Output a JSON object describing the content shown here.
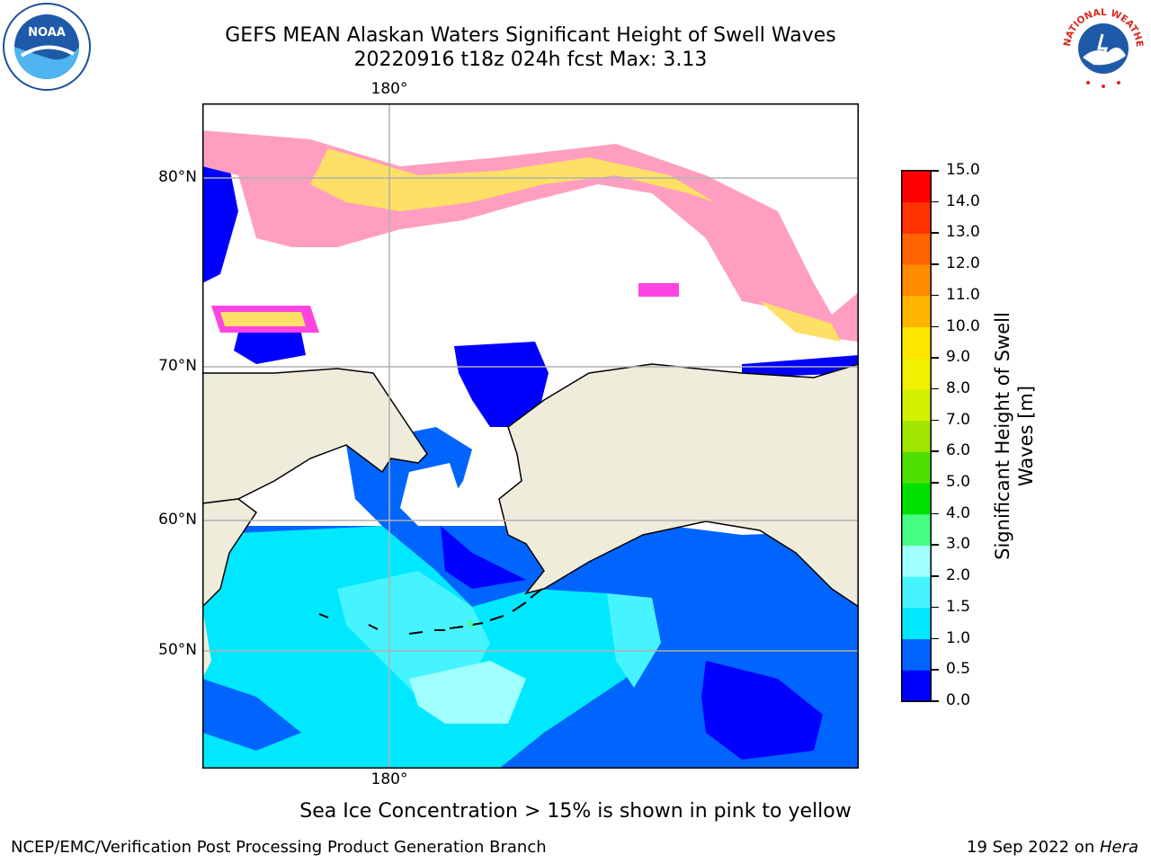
{
  "title": {
    "line1": "GEFS MEAN Alaskan Waters Significant Height of Swell Waves",
    "line2": "20220916 t18z 024h fcst   Max: 3.13"
  },
  "map": {
    "lon_label_top": "180°",
    "lon_label_bottom": "180°",
    "lat_labels": [
      "80°N",
      "70°N",
      "60°N",
      "50°N"
    ],
    "land_color": "#efecdc",
    "ice_colors": [
      "#ff44e0",
      "#ff9ec0",
      "#ffe066"
    ]
  },
  "colorbar": {
    "title": "Significant Height of Swell Waves [m]",
    "ticks": [
      "0.0",
      "0.5",
      "1.0",
      "1.5",
      "2.0",
      "3.0",
      "4.0",
      "5.0",
      "6.0",
      "7.0",
      "8.0",
      "9.0",
      "10.0",
      "11.0",
      "12.0",
      "13.0",
      "14.0",
      "15.0"
    ],
    "colors": [
      "#0000ff",
      "#0064ff",
      "#00e8ff",
      "#46f4ff",
      "#a0ffff",
      "#46ff82",
      "#00e000",
      "#50e000",
      "#a0e600",
      "#d2f000",
      "#f0f000",
      "#ffe600",
      "#ffb400",
      "#ff8c00",
      "#ff6400",
      "#ff3200",
      "#ff0000"
    ]
  },
  "caption": "Sea Ice Concentration > 15% is shown in pink to yellow",
  "footer": {
    "left": "NCEP/EMC/Verification Post Processing Product Generation Branch",
    "right_prefix": "19 Sep 2022 on ",
    "right_host": "Hera"
  },
  "logos": {
    "noaa_text": "NOAA",
    "nws_text": "NATIONAL WEATHER SERVICE"
  }
}
